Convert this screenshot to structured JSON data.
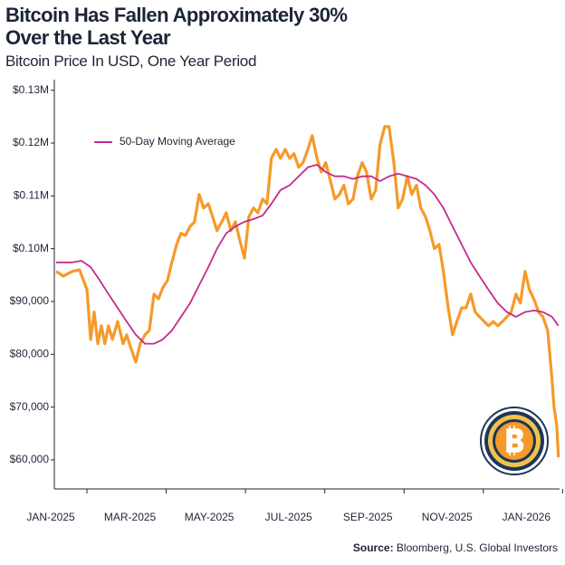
{
  "chart_data": {
    "type": "line",
    "title": [
      "Bitcoin Has Fallen Approximately 30%",
      "Over the Last Year"
    ],
    "subtitle": "Bitcoin Price In USD, One Year Period",
    "source_label": "Source:",
    "source": "Bloomberg, U.S. Global Investors",
    "xlim": [
      0,
      12.7
    ],
    "xticks": [
      {
        "value": 0,
        "label": "JAN-2025"
      },
      {
        "value": 2,
        "label": "MAR-2025"
      },
      {
        "value": 4,
        "label": "MAY-2025"
      },
      {
        "value": 6,
        "label": "JUL-2025"
      },
      {
        "value": 8,
        "label": "SEP-2025"
      },
      {
        "value": 10,
        "label": "NOV-2025"
      },
      {
        "value": 12,
        "label": "JAN-2026"
      }
    ],
    "ylim": [
      54500,
      132000
    ],
    "yticks": [
      {
        "value": 60000,
        "label": "$60,000"
      },
      {
        "value": 70000,
        "label": "$70,000"
      },
      {
        "value": 80000,
        "label": "$80,000"
      },
      {
        "value": 90000,
        "label": "$90,000"
      },
      {
        "value": 100000,
        "label": "$0.10M"
      },
      {
        "value": 110000,
        "label": "$0.11M"
      },
      {
        "value": 120000,
        "label": "$0.12M"
      },
      {
        "value": 130000,
        "label": "$0.13M"
      }
    ],
    "legend": "upper left",
    "series": [
      {
        "color": "#f59a2a",
        "x": [
          0,
          0.18,
          0.41,
          0.59,
          0.78,
          0.87,
          0.96,
          1.05,
          1.14,
          1.23,
          1.32,
          1.42,
          1.55,
          1.69,
          1.78,
          1.89,
          2.01,
          2.12,
          2.24,
          2.35,
          2.47,
          2.58,
          2.69,
          2.81,
          2.92,
          3.04,
          3.15,
          3.26,
          3.38,
          3.49,
          3.61,
          3.72,
          3.84,
          3.95,
          4.06,
          4.18,
          4.29,
          4.41,
          4.52,
          4.63,
          4.75,
          4.86,
          4.98,
          5.09,
          5.21,
          5.32,
          5.43,
          5.55,
          5.66,
          5.78,
          5.89,
          6.0,
          6.12,
          6.23,
          6.35,
          6.46,
          6.58,
          6.69,
          6.8,
          6.92,
          7.03,
          7.15,
          7.26,
          7.37,
          7.49,
          7.6,
          7.72,
          7.83,
          7.95,
          8.06,
          8.17,
          8.29,
          8.4,
          8.52,
          8.63,
          8.74,
          8.86,
          8.97,
          9.09,
          9.2,
          9.32,
          9.43,
          9.54,
          9.66,
          9.77,
          9.89,
          10.0,
          10.11,
          10.23,
          10.34,
          10.46,
          10.57,
          10.68,
          10.8,
          10.91,
          11.03,
          11.14,
          11.26,
          11.37,
          11.48,
          11.6,
          11.71,
          11.83,
          11.94,
          12.05,
          12.17,
          12.28,
          12.4,
          12.51,
          12.56,
          12.63,
          12.67
        ],
        "values": [
          95700,
          94800,
          95700,
          96000,
          92200,
          82800,
          88000,
          82000,
          85400,
          82000,
          85400,
          82800,
          86200,
          82000,
          83700,
          81100,
          78500,
          82000,
          83700,
          84500,
          91400,
          90500,
          92600,
          94000,
          97400,
          100800,
          102900,
          102500,
          104200,
          105100,
          110300,
          107700,
          108500,
          106000,
          103400,
          105100,
          106800,
          103400,
          105100,
          101700,
          98200,
          106000,
          107700,
          106800,
          109400,
          108500,
          117100,
          118800,
          117100,
          118800,
          117100,
          118000,
          115400,
          116300,
          118800,
          121400,
          117100,
          114500,
          116300,
          112800,
          109400,
          110300,
          112000,
          108500,
          109400,
          113700,
          116300,
          114500,
          109400,
          111100,
          119700,
          123100,
          123100,
          116300,
          107700,
          109400,
          113700,
          110300,
          112000,
          107700,
          106000,
          103400,
          100000,
          100800,
          95700,
          88800,
          83700,
          86200,
          88800,
          88800,
          91400,
          88000,
          87100,
          86200,
          85400,
          86200,
          85400,
          86200,
          87100,
          88000,
          91400,
          89700,
          95700,
          92200,
          90500,
          88000,
          87100,
          84500,
          75100,
          70000,
          66500,
          60500
        ]
      },
      {
        "name": "50-Day Moving Average",
        "color": "#c42a8c",
        "x": [
          0,
          0.41,
          0.64,
          0.87,
          1.1,
          1.32,
          1.55,
          1.78,
          2.01,
          2.24,
          2.47,
          2.69,
          2.92,
          3.15,
          3.38,
          3.61,
          3.84,
          4.06,
          4.29,
          4.52,
          4.75,
          4.98,
          5.21,
          5.43,
          5.66,
          5.89,
          6.12,
          6.35,
          6.58,
          6.8,
          7.03,
          7.26,
          7.49,
          7.72,
          7.95,
          8.17,
          8.4,
          8.63,
          8.86,
          9.09,
          9.32,
          9.54,
          9.77,
          10.0,
          10.23,
          10.46,
          10.68,
          10.91,
          11.14,
          11.37,
          11.6,
          11.83,
          12.05,
          12.28,
          12.51,
          12.67
        ],
        "values": [
          97400,
          97400,
          97700,
          96500,
          94000,
          91400,
          88800,
          86200,
          83700,
          82000,
          82000,
          82800,
          84500,
          87100,
          89700,
          93100,
          96500,
          100000,
          102900,
          104200,
          105100,
          105600,
          106300,
          108500,
          111100,
          112000,
          113700,
          115400,
          115900,
          114500,
          113700,
          113700,
          113200,
          113700,
          113700,
          112800,
          113700,
          114200,
          113700,
          113200,
          112000,
          110300,
          107700,
          104200,
          100800,
          97400,
          94800,
          92200,
          89700,
          88000,
          87100,
          88000,
          88300,
          88000,
          87100,
          85400
        ]
      }
    ]
  }
}
